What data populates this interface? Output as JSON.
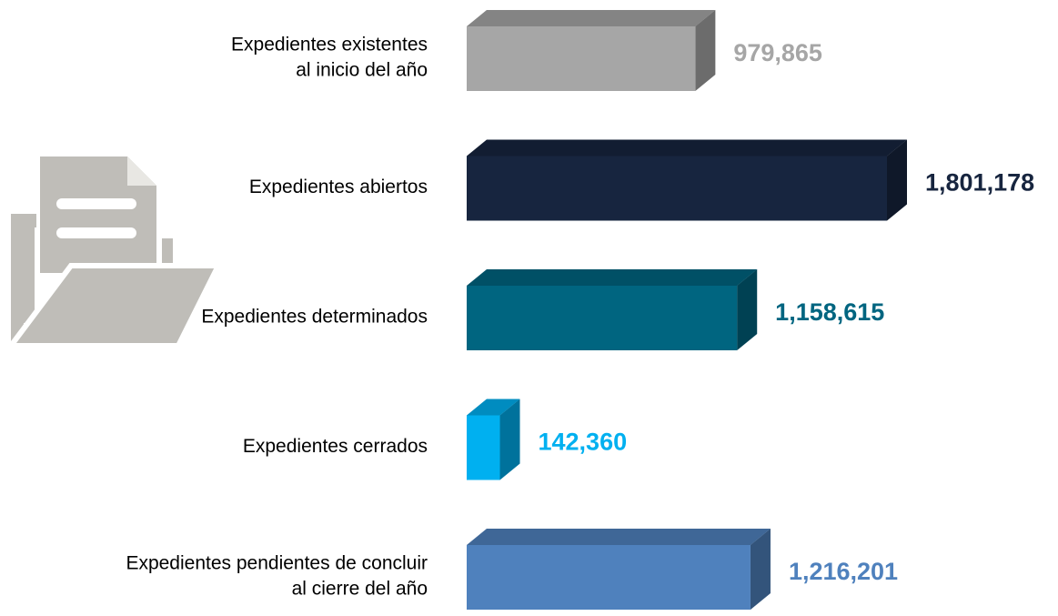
{
  "chart_data": {
    "type": "bar3d",
    "categories": [
      [
        "Expedientes existentes",
        "al inicio del año"
      ],
      [
        "Expedientes abiertos"
      ],
      [
        "Expedientes determinados"
      ],
      [
        "Expedientes cerrados"
      ],
      [
        "Expedientes pendientes de concluir",
        "al cierre del año"
      ]
    ],
    "values": [
      979865,
      1801178,
      1158615,
      142360,
      1216201
    ],
    "value_labels": [
      "979,865",
      "1,801,178",
      "1,158,615",
      "142,360",
      "1,216,201"
    ],
    "colors": [
      "#a6a6a6",
      "#17253f",
      "#006580",
      "#00b0f0",
      "#4f81bd"
    ]
  }
}
